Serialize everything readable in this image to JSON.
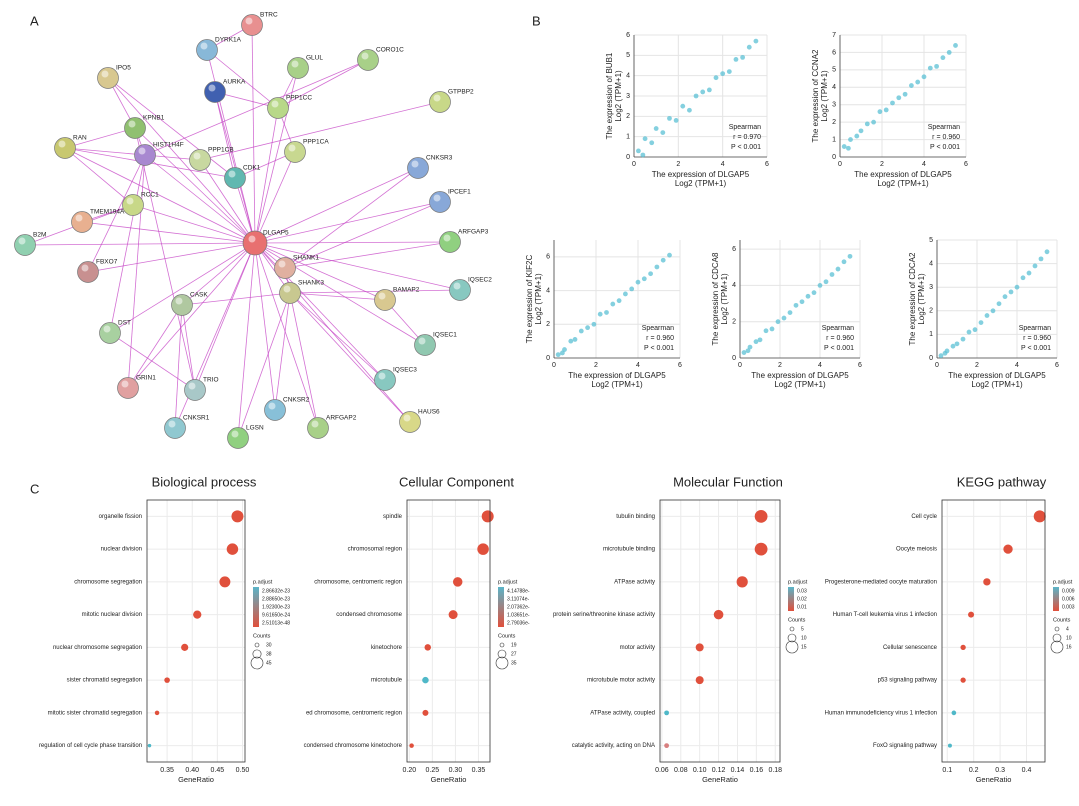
{
  "panels": {
    "a": "A",
    "b": "B",
    "c": "C"
  },
  "network": {
    "nodes": [
      "BTRC",
      "DYRK1A",
      "GLUL",
      "CORO1C",
      "IPO5",
      "AURKA",
      "PPP1CC",
      "GTPBP2",
      "KPNB1",
      "RAN",
      "HIST1H4F",
      "PPP1CB",
      "PPP1CA",
      "CDK1",
      "CNKSR3",
      "RCC1",
      "IPCEF1",
      "TMEM194A",
      "B2M",
      "DLGAP5",
      "ARFGAP3",
      "FBXO7",
      "SHANK1",
      "SHANK3",
      "IQSEC2",
      "CASK",
      "BAMAP2",
      "DST",
      "IQSEC1",
      "GRIN1",
      "TRIO",
      "IQSEC3",
      "CNKSR1",
      "CNKSR2",
      "ARFGAP2",
      "HAUS6",
      "LGSN"
    ]
  },
  "chart_data": [
    {
      "type": "scatter",
      "color": "#5bc0d4",
      "xlabel": "The expression of DLGAP5",
      "xlabel2": "Log2 (TPM+1)",
      "ylabel": "The expression of BUB1",
      "ylabel2": "Log2 (TPM+1)",
      "stats": [
        "Spearman",
        "r = 0.970",
        "P < 0.001"
      ],
      "xlim": [
        0,
        6
      ],
      "xticks": [
        0,
        2,
        4,
        6
      ],
      "ylim": [
        0,
        6
      ],
      "yticks": [
        0,
        1,
        2,
        3,
        4,
        5,
        6
      ],
      "grid": true,
      "x": [
        0.2,
        0.5,
        0.8,
        1.0,
        1.3,
        1.6,
        1.9,
        2.2,
        2.5,
        2.8,
        3.1,
        3.4,
        3.7,
        4.0,
        4.3,
        4.6,
        4.9,
        5.2,
        5.5,
        0.4
      ],
      "y": [
        0.3,
        0.9,
        0.7,
        1.4,
        1.2,
        1.9,
        1.8,
        2.5,
        2.3,
        3.0,
        3.2,
        3.3,
        3.9,
        4.1,
        4.2,
        4.8,
        4.9,
        5.4,
        5.7,
        0.1
      ]
    },
    {
      "type": "scatter",
      "color": "#5bc0d4",
      "xlabel": "The expression of DLGAP5",
      "xlabel2": "Log2 (TPM+1)",
      "ylabel": "The expression of CCNA2",
      "ylabel2": "Log2 (TPM+1)",
      "stats": [
        "Spearman",
        "r = 0.960",
        "P < 0.001"
      ],
      "xlim": [
        0,
        6
      ],
      "xticks": [
        0,
        2,
        4,
        6
      ],
      "ylim": [
        0,
        7
      ],
      "yticks": [
        0,
        1,
        2,
        3,
        4,
        5,
        6,
        7
      ],
      "grid": true,
      "x": [
        0.2,
        0.5,
        0.8,
        1.0,
        1.3,
        1.6,
        1.9,
        2.2,
        2.5,
        2.8,
        3.1,
        3.4,
        3.7,
        4.0,
        4.3,
        4.6,
        4.9,
        5.2,
        5.5,
        0.4
      ],
      "y": [
        0.6,
        1.0,
        1.2,
        1.5,
        1.9,
        2.0,
        2.6,
        2.7,
        3.1,
        3.4,
        3.6,
        4.1,
        4.3,
        4.6,
        5.1,
        5.2,
        5.7,
        6.0,
        6.4,
        0.5
      ]
    },
    {
      "type": "scatter",
      "color": "#5bc0d4",
      "xlabel": "The expression of DLGAP5",
      "xlabel2": "Log2 (TPM+1)",
      "ylabel": "The expression of KIF2C",
      "ylabel2": "Log2 (TPM+1)",
      "stats": [
        "Spearman",
        "r = 0.960",
        "P < 0.001"
      ],
      "xlim": [
        0,
        6
      ],
      "xticks": [
        0,
        2,
        4,
        6
      ],
      "ylim": [
        0,
        7
      ],
      "yticks": [
        0,
        2,
        4,
        6
      ],
      "grid": true,
      "x": [
        0.2,
        0.5,
        0.8,
        1.0,
        1.3,
        1.6,
        1.9,
        2.2,
        2.5,
        2.8,
        3.1,
        3.4,
        3.7,
        4.0,
        4.3,
        4.6,
        4.9,
        5.2,
        5.5,
        0.4
      ],
      "y": [
        0.2,
        0.5,
        1.0,
        1.1,
        1.6,
        1.8,
        2.0,
        2.6,
        2.7,
        3.2,
        3.4,
        3.8,
        4.1,
        4.5,
        4.7,
        5.0,
        5.4,
        5.8,
        6.1,
        0.3
      ]
    },
    {
      "type": "scatter",
      "color": "#5bc0d4",
      "xlabel": "The expression of DLGAP5",
      "xlabel2": "Log2 (TPM+1)",
      "ylabel": "The expression of CDCA8",
      "ylabel2": "Log2 (TPM+1)",
      "stats": [
        "Spearman",
        "r = 0.960",
        "P < 0.001"
      ],
      "xlim": [
        0,
        6
      ],
      "xticks": [
        0,
        2,
        4,
        6
      ],
      "ylim": [
        0,
        6.5
      ],
      "yticks": [
        0,
        2,
        4,
        6
      ],
      "grid": true,
      "x": [
        0.2,
        0.5,
        0.8,
        1.0,
        1.3,
        1.6,
        1.9,
        2.2,
        2.5,
        2.8,
        3.1,
        3.4,
        3.7,
        4.0,
        4.3,
        4.6,
        4.9,
        5.2,
        5.5,
        0.4
      ],
      "y": [
        0.3,
        0.6,
        0.9,
        1.0,
        1.5,
        1.6,
        2.0,
        2.2,
        2.5,
        2.9,
        3.1,
        3.4,
        3.6,
        4.0,
        4.2,
        4.6,
        4.9,
        5.3,
        5.6,
        0.4
      ]
    },
    {
      "type": "scatter",
      "color": "#5bc0d4",
      "xlabel": "The expression of DLGAP5",
      "xlabel2": "Log2 (TPM+1)",
      "ylabel": "The expression of CDCA2",
      "ylabel2": "Log2 (TPM+1)",
      "stats": [
        "Spearman",
        "r = 0.960",
        "P < 0.001"
      ],
      "xlim": [
        0,
        6
      ],
      "xticks": [
        0,
        2,
        4,
        6
      ],
      "ylim": [
        0,
        5
      ],
      "yticks": [
        0,
        1,
        2,
        3,
        4,
        5
      ],
      "grid": true,
      "x": [
        0.2,
        0.5,
        0.8,
        1.0,
        1.3,
        1.6,
        1.9,
        2.2,
        2.5,
        2.8,
        3.1,
        3.4,
        3.7,
        4.0,
        4.3,
        4.6,
        4.9,
        5.2,
        5.5,
        0.4
      ],
      "y": [
        0.1,
        0.3,
        0.5,
        0.6,
        0.8,
        1.1,
        1.2,
        1.5,
        1.8,
        2.0,
        2.3,
        2.6,
        2.8,
        3.0,
        3.4,
        3.6,
        3.9,
        4.2,
        4.5,
        0.2
      ]
    },
    {
      "type": "dot",
      "title": "Biological process",
      "xlabel": "GeneRatio",
      "xlim": [
        0.31,
        0.505
      ],
      "xticks": [
        0.35,
        {
          "value": 0.4,
          "label": "0.40"
        },
        0.45,
        {
          "value": 0.5,
          "label": "0.50"
        }
      ],
      "grid": true,
      "categories": [
        "organelle fission",
        "nuclear division",
        "chromosome segregation",
        "mitotic nuclear division",
        "nuclear chromosome segregation",
        "sister chromatid segregation",
        "mitotic sister chromatid segregation",
        "regulation of cell cycle phase transition"
      ],
      "values": [
        0.49,
        0.48,
        0.465,
        0.41,
        0.385,
        0.35,
        0.33,
        0.315
      ],
      "counts": [
        45,
        44,
        43,
        38,
        36,
        33,
        31,
        29
      ],
      "colors": [
        "#e0503c",
        "#e0503c",
        "#e0503c",
        "#e0503c",
        "#e0503c",
        "#e0503c",
        "#e0503c",
        "#4fb8c8"
      ],
      "legend_title": "p.adjust",
      "legend_labels": [
        "2.86632e-23",
        "2.88650e-23",
        "1.92300e-23",
        "9.61650e-24",
        "2.51013e-48"
      ],
      "size_title": "Counts",
      "size_labels": [
        30,
        38,
        45
      ]
    },
    {
      "type": "dot",
      "title": "Cellular Component",
      "xlabel": "GeneRatio",
      "xlim": [
        0.195,
        0.375
      ],
      "xticks": [
        {
          "value": 0.2,
          "label": "0.20"
        },
        0.25,
        {
          "value": 0.3,
          "label": "0.30"
        },
        0.35
      ],
      "grid": true,
      "categories": [
        "spindle",
        "chromosomal region",
        "chromosome, centromeric region",
        "condensed chromosome",
        "kinetochore",
        "microtubule",
        "ed chromosome, centromeric region",
        "condensed chromosome kinetochore"
      ],
      "values": [
        0.37,
        0.36,
        0.305,
        0.295,
        0.24,
        0.235,
        0.235,
        0.205
      ],
      "counts": [
        35,
        34,
        30,
        29,
        24,
        24,
        23,
        20
      ],
      "colors": [
        "#e0503c",
        "#e0503c",
        "#e0503c",
        "#e0503c",
        "#e0503c",
        "#4fb8c8",
        "#e0503c",
        "#e0503c"
      ],
      "legend_title": "p.adjust",
      "legend_labels": [
        "4.14788e-",
        "3.11074e-",
        "2.07362e-",
        "1.03651e-",
        "2.79036e-"
      ],
      "size_title": "Counts",
      "size_labels": [
        19,
        27,
        35
      ]
    },
    {
      "type": "dot",
      "title": "Molecular Function",
      "xlabel": "GeneRatio",
      "xlim": [
        0.058,
        0.185
      ],
      "xticks": [
        0.06,
        0.08,
        {
          "value": 0.1,
          "label": "0.10"
        },
        0.12,
        0.14,
        0.16,
        0.18
      ],
      "grid": true,
      "categories": [
        "tubulin binding",
        "microtubule binding",
        "ATPase activity",
        "protein serine/threonine kinase activity",
        "motor activity",
        "microtubule motor activity",
        "ATPase activity, coupled",
        "catalytic activity, acting on DNA"
      ],
      "values": [
        0.165,
        0.165,
        0.145,
        0.12,
        0.1,
        0.1,
        0.065,
        0.065
      ],
      "counts": [
        16,
        16,
        14,
        12,
        10,
        10,
        6,
        6
      ],
      "colors": [
        "#e0503c",
        "#e0503c",
        "#e0503c",
        "#e0503c",
        "#e0503c",
        "#e0503c",
        "#4fb8c8",
        "#d88080"
      ],
      "legend_title": "p.adjust",
      "legend_labels": [
        0.03,
        0.02,
        0.01
      ],
      "size_title": "Counts",
      "size_labels": [
        5,
        10,
        15
      ]
    },
    {
      "type": "dot",
      "title": "KEGG pathway",
      "xlabel": "GeneRatio",
      "xlim": [
        0.08,
        0.47
      ],
      "xticks": [
        0.1,
        0.2,
        0.3,
        0.4
      ],
      "grid": true,
      "categories": [
        "Cell cycle",
        "Oocyte meiosis",
        "Progesterone-mediated oocyte maturation",
        "Human T-cell leukemia virus 1 infection",
        "Cellular senescence",
        "p53 signaling pathway",
        "Human immunodeficiency virus 1 infection",
        "FoxO signaling pathway"
      ],
      "values": [
        0.45,
        0.33,
        0.25,
        0.19,
        0.16,
        0.16,
        0.125,
        0.11
      ],
      "counts": [
        16,
        12,
        9,
        7,
        6,
        6,
        5,
        4
      ],
      "colors": [
        "#e0503c",
        "#e0503c",
        "#e0503c",
        "#e0503c",
        "#e0503c",
        "#e0503c",
        "#4fb8c8",
        "#4fb8c8"
      ],
      "legend_title": "p.adjust",
      "legend_labels": [
        "0.009",
        "0.006",
        "0.003"
      ],
      "size_title": "Counts",
      "size_labels": [
        4,
        10,
        16
      ]
    }
  ]
}
